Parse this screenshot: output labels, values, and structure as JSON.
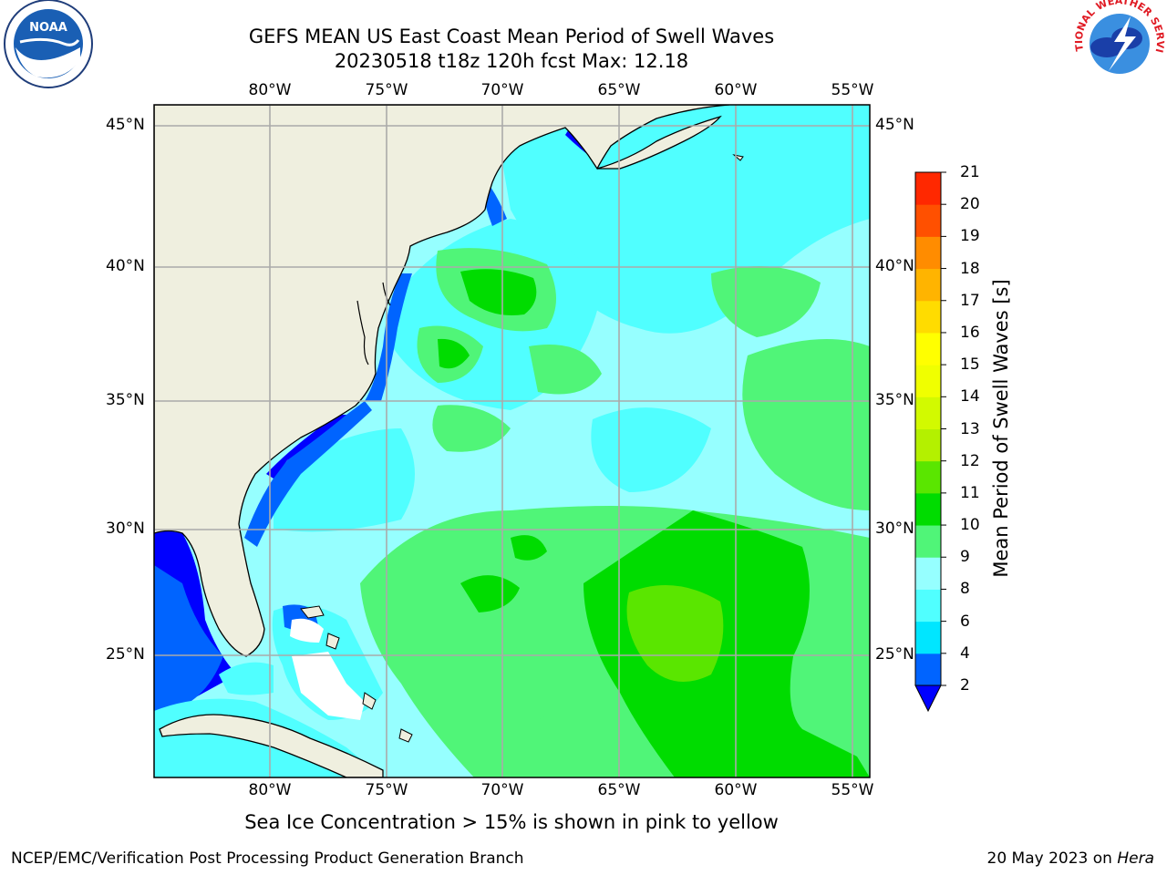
{
  "title_line1": "GEFS MEAN US East Coast Mean Period of Swell Waves",
  "title_line2": "20230518 t18z 120h fcst   Max: 12.18",
  "lon_labels": [
    "80°W",
    "75°W",
    "70°W",
    "65°W",
    "60°W",
    "55°W"
  ],
  "lat_labels": [
    "45°N",
    "40°N",
    "35°N",
    "30°N",
    "25°N"
  ],
  "colorbar": {
    "label": "Mean Period of Swell Waves [s]",
    "ticks": [
      "2",
      "4",
      "6",
      "8",
      "9",
      "10",
      "11",
      "12",
      "13",
      "14",
      "15",
      "16",
      "17",
      "18",
      "19",
      "20",
      "21"
    ],
    "colors": [
      "#0064ff",
      "#00e6ff",
      "#50ffff",
      "#96ffff",
      "#50f578",
      "#00dc00",
      "#5ae600",
      "#b4f000",
      "#d2fa00",
      "#f0ff00",
      "#ffff00",
      "#ffdc00",
      "#ffb400",
      "#ff8c00",
      "#ff5000",
      "#ff2800"
    ],
    "under_color": "#0000ff"
  },
  "colors": {
    "land": "#efefdf",
    "grid": "#aaaaaa"
  },
  "footer_note": "Sea Ice Concentration > 15% is shown in pink to yellow",
  "credit": "NCEP/EMC/Verification Post Processing Product Generation Branch",
  "date_prefix": "20 May 2023 on ",
  "date_machine": "Hera",
  "logos": {
    "noaa_text": "NOAA",
    "nws_text": "NATIONAL WEATHER SERVICE"
  }
}
